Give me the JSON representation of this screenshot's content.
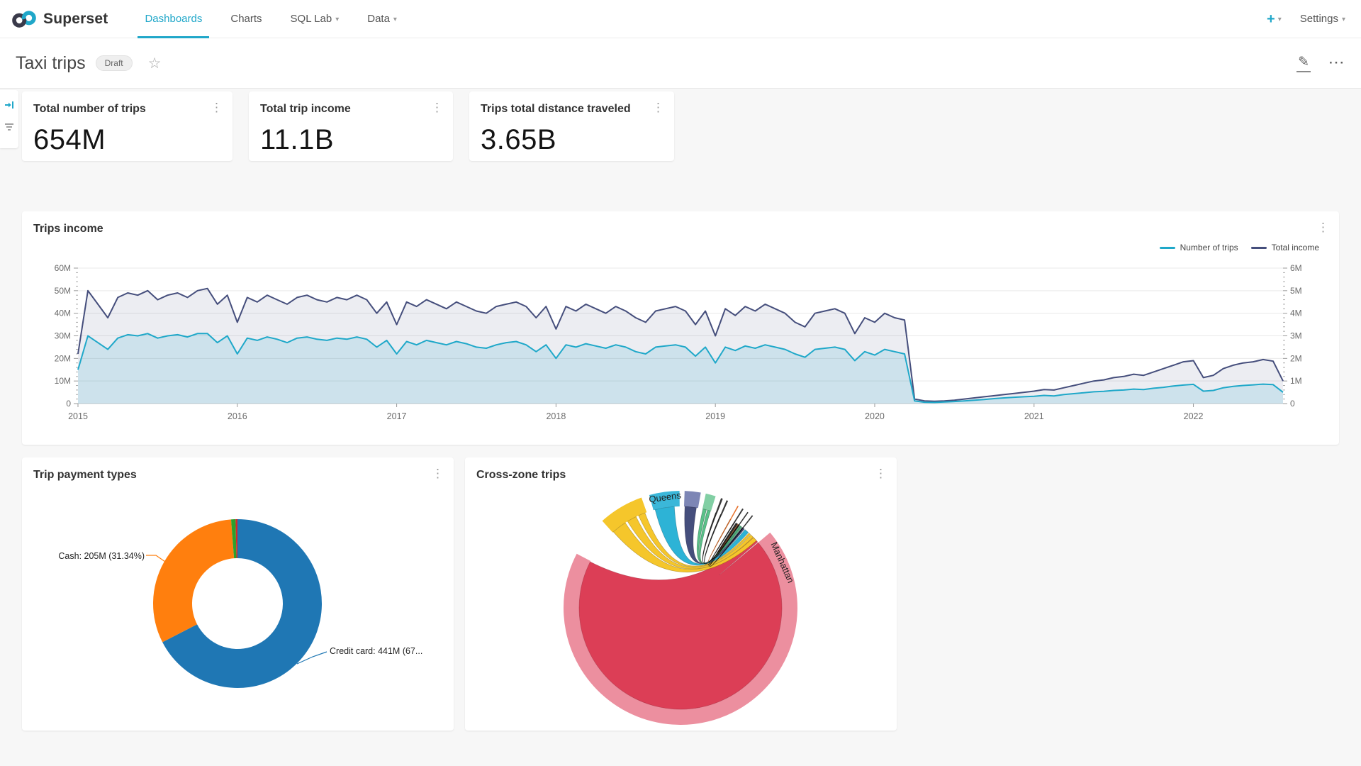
{
  "icons": {
    "kebab": "⋮",
    "ellipsis": "···",
    "star": "☆",
    "caret": "▾",
    "plus": "+",
    "pencil": "✎"
  },
  "nav": {
    "brand": "Superset",
    "items": [
      {
        "label": "Dashboards",
        "active": true,
        "caret": false
      },
      {
        "label": "Charts",
        "active": false,
        "caret": false
      },
      {
        "label": "SQL Lab",
        "active": false,
        "caret": true
      },
      {
        "label": "Data",
        "active": false,
        "caret": true
      }
    ],
    "settings_label": "Settings"
  },
  "header": {
    "title": "Taxi trips",
    "status_badge": "Draft"
  },
  "kpis": [
    {
      "title": "Total number of trips",
      "value": "654M"
    },
    {
      "title": "Total trip income",
      "value": "11.1B"
    },
    {
      "title": "Trips total distance traveled",
      "value": "3.65B"
    }
  ],
  "panels": {
    "trips_income_title": "Trips income",
    "payment_types_title": "Trip payment types",
    "cross_zone_title": "Cross-zone trips"
  },
  "colors": {
    "accent": "#20A7C9",
    "trips_line": "#1FA8C9",
    "income_line": "#454E7C",
    "donut_credit": "#1f77b4",
    "donut_cash": "#ff7f0e",
    "chord_manhattan": "#EC8F9F",
    "chord_inner": "#DC3E56"
  },
  "chart_data": [
    {
      "id": "trips-income",
      "type": "area",
      "title": "Trips income",
      "x_start": 2015,
      "x_step": 0.0625,
      "x_ticks": [
        2015,
        2016,
        2017,
        2018,
        2019,
        2020,
        2021,
        2022
      ],
      "left_axis": {
        "unit": "M",
        "max": 60,
        "ticks": [
          "0",
          "10M",
          "20M",
          "30M",
          "40M",
          "50M",
          "60M"
        ]
      },
      "right_axis": {
        "unit": "M",
        "max": 6,
        "ticks": [
          "0",
          "1M",
          "2M",
          "3M",
          "4M",
          "5M",
          "6M"
        ]
      },
      "legend_position": "top-right",
      "grid": true,
      "series": [
        {
          "name": "Total income",
          "axis": "left",
          "color": "#454E7C",
          "fill": "rgba(69,78,124,0.10)",
          "values": [
            22,
            50,
            44,
            38,
            47,
            49,
            48,
            50,
            46,
            48,
            49,
            47,
            50,
            51,
            44,
            48,
            36,
            47,
            45,
            48,
            46,
            44,
            47,
            48,
            46,
            45,
            47,
            46,
            48,
            46,
            40,
            45,
            35,
            45,
            43,
            46,
            44,
            42,
            45,
            43,
            41,
            40,
            43,
            44,
            45,
            43,
            38,
            43,
            33,
            43,
            41,
            44,
            42,
            40,
            43,
            41,
            38,
            36,
            41,
            42,
            43,
            41,
            35,
            41,
            30,
            42,
            39,
            43,
            41,
            44,
            42,
            40,
            36,
            34,
            40,
            41,
            42,
            40,
            31,
            38,
            36,
            40,
            38,
            37,
            2,
            1.2,
            1,
            1.2,
            1.5,
            2,
            2.5,
            3,
            3.5,
            4,
            4.5,
            5,
            5.5,
            6.2,
            6,
            7,
            8,
            9,
            10,
            10.5,
            11.5,
            12,
            13,
            12.5,
            14,
            15.5,
            17,
            18.5,
            19,
            11.5,
            12.5,
            15.5,
            17,
            18,
            18.5,
            19.5,
            18.8,
            10
          ]
        },
        {
          "name": "Number of trips",
          "axis": "right",
          "color": "#1FA8C9",
          "fill": "rgba(31,168,201,0.15)",
          "values": [
            1.5,
            3,
            2.7,
            2.4,
            2.9,
            3.05,
            3,
            3.1,
            2.9,
            3,
            3.05,
            2.95,
            3.1,
            3.1,
            2.7,
            3,
            2.2,
            2.9,
            2.8,
            2.95,
            2.85,
            2.7,
            2.9,
            2.95,
            2.85,
            2.8,
            2.9,
            2.85,
            2.95,
            2.85,
            2.5,
            2.8,
            2.2,
            2.75,
            2.6,
            2.8,
            2.7,
            2.6,
            2.75,
            2.65,
            2.5,
            2.45,
            2.6,
            2.7,
            2.75,
            2.6,
            2.3,
            2.6,
            2,
            2.6,
            2.5,
            2.65,
            2.55,
            2.45,
            2.6,
            2.5,
            2.3,
            2.2,
            2.5,
            2.55,
            2.6,
            2.5,
            2.1,
            2.5,
            1.8,
            2.5,
            2.35,
            2.55,
            2.45,
            2.6,
            2.5,
            2.4,
            2.2,
            2.05,
            2.4,
            2.45,
            2.5,
            2.4,
            1.9,
            2.3,
            2.15,
            2.4,
            2.3,
            2.2,
            0.12,
            0.06,
            0.05,
            0.07,
            0.09,
            0.12,
            0.15,
            0.18,
            0.22,
            0.25,
            0.28,
            0.3,
            0.32,
            0.36,
            0.34,
            0.4,
            0.44,
            0.48,
            0.52,
            0.54,
            0.58,
            0.6,
            0.64,
            0.62,
            0.68,
            0.72,
            0.78,
            0.82,
            0.85,
            0.55,
            0.58,
            0.7,
            0.76,
            0.8,
            0.83,
            0.86,
            0.84,
            0.5
          ]
        }
      ]
    },
    {
      "id": "payment-types",
      "type": "pie",
      "title": "Trip payment types",
      "donut": true,
      "segments": [
        {
          "label": "Credit card",
          "value": "441M",
          "pct": 67.45,
          "color": "#1f77b4",
          "callout": "Credit card: 441M (67..."
        },
        {
          "label": "Cash",
          "value": "205M",
          "pct": 31.34,
          "color": "#ff7f0e",
          "callout": "Cash: 205M (31.34%)"
        },
        {
          "label": "",
          "pct": 0.85,
          "color": "#2ca02c",
          "callout": ""
        },
        {
          "label": "",
          "pct": 0.36,
          "color": "#d62728",
          "callout": ""
        }
      ]
    },
    {
      "id": "cross-zone",
      "type": "chord",
      "title": "Cross-zone trips",
      "labels": [
        {
          "text": "Queens",
          "angle": -8,
          "r": 153
        },
        {
          "text": "Manhattan",
          "angle": 66,
          "r": 153
        }
      ],
      "arcs": [
        {
          "a1": 50,
          "a2": 297.5,
          "color": "#EC8F9F"
        },
        {
          "a1": 318,
          "a2": 340.5,
          "color": "#F5C62B"
        },
        {
          "a1": 344.5,
          "a2": 359.5,
          "color": "#3BB7D9"
        },
        {
          "a1": 2,
          "a2": 10,
          "color": "#7D86B5"
        },
        {
          "a1": 12.5,
          "a2": 17.5,
          "color": "#82CFA4"
        },
        {
          "a1": 20.3,
          "a2": 21.2,
          "color": "#3a3a3a"
        },
        {
          "a1": 23.2,
          "a2": 24,
          "color": "#3a3a3a"
        },
        {
          "a1": 29.2,
          "a2": 29.8,
          "color": "#E8742E"
        },
        {
          "a1": 31.9,
          "a2": 32.6,
          "color": "#3a3a3a"
        },
        {
          "a1": 34.9,
          "a2": 35.5,
          "color": "#3a3a3a"
        },
        {
          "a1": 37.7,
          "a2": 38.3,
          "color": "#3a3a3a"
        }
      ],
      "flows": [
        {
          "a1": 50,
          "a2": 297,
          "b1": 46,
          "b2": 49.5,
          "color": "#DC3E56",
          "stroke": "rgba(150,30,50,0.5)"
        },
        {
          "a1": 318.5,
          "a2": 327,
          "b1": 46,
          "b2": 48.5,
          "color": "#F5C62B",
          "stroke": "rgba(120,90,0,0.45)"
        },
        {
          "a1": 328.5,
          "a2": 334,
          "b1": 44,
          "b2": 45.8,
          "color": "#F5C62B",
          "stroke": "rgba(120,90,0,0.45)"
        },
        {
          "a1": 335.5,
          "a2": 339.5,
          "b1": 42.5,
          "b2": 43.6,
          "color": "#F5C62B",
          "stroke": "rgba(120,90,0,0.45)"
        },
        {
          "a1": 345.5,
          "a2": 356.5,
          "b1": 39.5,
          "b2": 42,
          "color": "#2DB3D6",
          "stroke": "rgba(0,70,90,0.4)"
        },
        {
          "a1": 2.5,
          "a2": 9,
          "b1": 37.5,
          "b2": 39,
          "color": "#454E7C",
          "stroke": "rgba(30,30,60,0.5)"
        },
        {
          "a1": 12.8,
          "a2": 14.8,
          "b1": 36.5,
          "b2": 37.2,
          "color": "#5AC189",
          "stroke": "rgba(20,80,50,0.5)"
        },
        {
          "a1": 15.4,
          "a2": 17.2,
          "b1": 35.8,
          "b2": 36.4,
          "color": "#5AC189",
          "stroke": "rgba(20,80,50,0.5)"
        },
        {
          "a1": 20.3,
          "a2": 21,
          "b1": 35.2,
          "b2": 35.5,
          "color": "#2b2b2b",
          "stroke": "rgba(0,0,0,0.6)"
        },
        {
          "a1": 23.2,
          "a2": 23.8,
          "b1": 34.8,
          "b2": 35,
          "color": "#2b2b2b",
          "stroke": "rgba(0,0,0,0.6)"
        },
        {
          "a1": 29.3,
          "a2": 29.7,
          "b1": 34.4,
          "b2": 34.6,
          "color": "#E8742E",
          "stroke": "rgba(150,60,0,0.6)"
        },
        {
          "a1": 32,
          "a2": 32.5,
          "b1": 34,
          "b2": 34.2,
          "color": "#2b2b2b",
          "stroke": "rgba(0,0,0,0.6)"
        },
        {
          "a1": 35,
          "a2": 35.4,
          "b1": 33.6,
          "b2": 33.8,
          "color": "#2b2b2b",
          "stroke": "rgba(0,0,0,0.6)"
        },
        {
          "a1": 37.8,
          "a2": 38.2,
          "b1": 33.2,
          "b2": 33.4,
          "color": "#2b2b2b",
          "stroke": "rgba(0,0,0,0.6)"
        }
      ]
    }
  ]
}
